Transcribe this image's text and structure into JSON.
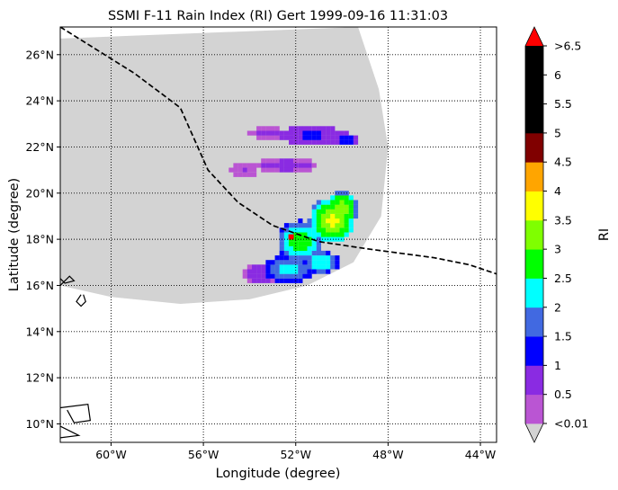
{
  "chart_data": {
    "type": "heatmap",
    "title": "SSMI F-11 Rain Index (RI) Gert 1999-09-16 11:31:03",
    "xlabel": "Longitude (degree)",
    "ylabel": "Latitude (degree)",
    "xlim": [
      -62.2,
      -43.3
    ],
    "ylim": [
      9.2,
      27.2
    ],
    "x_ticks": [
      {
        "value": -60,
        "label": "60°W"
      },
      {
        "value": -56,
        "label": "56°W"
      },
      {
        "value": -52,
        "label": "52°W"
      },
      {
        "value": -48,
        "label": "48°W"
      },
      {
        "value": -44,
        "label": "44°W"
      }
    ],
    "y_ticks": [
      {
        "value": 10,
        "label": "10°N"
      },
      {
        "value": 12,
        "label": "12°N"
      },
      {
        "value": 14,
        "label": "14°N"
      },
      {
        "value": 16,
        "label": "16°N"
      },
      {
        "value": 18,
        "label": "18°N"
      },
      {
        "value": 20,
        "label": "20°N"
      },
      {
        "value": 22,
        "label": "22°N"
      },
      {
        "value": 24,
        "label": "24°N"
      },
      {
        "value": 26,
        "label": "26°N"
      }
    ],
    "grid": "dotted",
    "colorbar": {
      "label": "RI",
      "levels": [
        0.01,
        0.5,
        1,
        1.5,
        2,
        2.5,
        3,
        3.5,
        4,
        4.5,
        5,
        5.5,
        6,
        6.5
      ],
      "colors": [
        "#ba55d3",
        "#8a2be2",
        "#0000ff",
        "#4169e1",
        "#00ffff",
        "#00ff00",
        "#7fff00",
        "#ffff00",
        "#ffa500",
        "#800000",
        "#000000",
        "#000000",
        "#000000"
      ],
      "under_color": "#d3d3d3",
      "over_color": "#ff0000",
      "tick_labels": [
        "<0.01",
        "0.5",
        "1",
        "1.5",
        "2",
        "2.5",
        "3",
        "3.5",
        "4",
        "4.5",
        "5",
        "5.5",
        "6",
        ">6.5"
      ]
    },
    "swath": {
      "no_rain_color": "#d3d3d3",
      "edge": [
        [
          -62.2,
          26.7
        ],
        [
          -49.3,
          27.2
        ],
        [
          -48.4,
          24.5
        ],
        [
          -48.0,
          22.0
        ],
        [
          -48.3,
          19.0
        ],
        [
          -49.5,
          17.0
        ],
        [
          -51.5,
          16.0
        ],
        [
          -54.0,
          15.4
        ],
        [
          -57.0,
          15.2
        ],
        [
          -60.0,
          15.5
        ],
        [
          -62.2,
          16.0
        ]
      ]
    },
    "rain_features": [
      {
        "center": [
          -50.4,
          18.8
        ],
        "radius": 1.5,
        "peak_ri": 3.6,
        "spread_lon": 1.0,
        "spread_lat": 1.0
      },
      {
        "center": [
          -50.0,
          19.3
        ],
        "radius": 1.0,
        "peak_ri": 3.4,
        "spread_lon": 0.7,
        "spread_lat": 0.8
      },
      {
        "center": [
          -51.8,
          17.9
        ],
        "radius": 1.3,
        "peak_ri": 2.9,
        "spread_lon": 1.0,
        "spread_lat": 0.9
      },
      {
        "center": [
          -52.3,
          16.7
        ],
        "radius": 1.3,
        "peak_ri": 2.2,
        "spread_lon": 1.1,
        "spread_lat": 0.6
      },
      {
        "center": [
          -50.9,
          17.0
        ],
        "radius": 0.9,
        "peak_ri": 2.4,
        "spread_lon": 0.8,
        "spread_lat": 0.5
      },
      {
        "center": [
          -53.5,
          16.5
        ],
        "radius": 0.9,
        "peak_ri": 0.7,
        "spread_lon": 0.8,
        "spread_lat": 0.5
      },
      {
        "center": [
          -51.3,
          22.5
        ],
        "radius": 1.2,
        "peak_ri": 1.1,
        "spread_lon": 1.4,
        "spread_lat": 0.4
      },
      {
        "center": [
          -49.8,
          22.3
        ],
        "radius": 0.8,
        "peak_ri": 1.3,
        "spread_lon": 0.6,
        "spread_lat": 0.3
      },
      {
        "center": [
          -53.2,
          22.6
        ],
        "radius": 0.8,
        "peak_ri": 0.6,
        "spread_lon": 0.8,
        "spread_lat": 0.3
      },
      {
        "center": [
          -52.4,
          21.2
        ],
        "radius": 1.0,
        "peak_ri": 0.7,
        "spread_lon": 1.4,
        "spread_lat": 0.3
      },
      {
        "center": [
          -54.2,
          21.0
        ],
        "radius": 0.6,
        "peak_ri": 0.5,
        "spread_lon": 0.6,
        "spread_lat": 0.3
      }
    ],
    "hot_spot": {
      "lon": -52.2,
      "lat": 18.1,
      "ri": 7.0
    },
    "track": {
      "style": "dashed",
      "color": "#000000",
      "points": [
        [
          -62.2,
          27.2
        ],
        [
          -59.0,
          25.2
        ],
        [
          -57.0,
          23.7
        ],
        [
          -55.8,
          21.0
        ],
        [
          -54.5,
          19.6
        ],
        [
          -53.0,
          18.6
        ],
        [
          -51.0,
          17.9
        ],
        [
          -49.0,
          17.6
        ],
        [
          -47.5,
          17.4
        ],
        [
          -46.0,
          17.2
        ],
        [
          -44.5,
          16.9
        ],
        [
          -43.3,
          16.5
        ]
      ]
    },
    "coastlines": [
      [
        [
          -62.2,
          16.0
        ],
        [
          -61.8,
          16.4
        ],
        [
          -61.6,
          16.2
        ],
        [
          -62.0,
          16.1
        ],
        [
          -62.2,
          16.3
        ]
      ],
      [
        [
          -61.2,
          15.6
        ],
        [
          -61.1,
          15.3
        ],
        [
          -61.3,
          15.1
        ],
        [
          -61.5,
          15.3
        ],
        [
          -61.3,
          15.6
        ]
      ],
      [
        [
          -62.2,
          10.7
        ],
        [
          -61.0,
          10.85
        ],
        [
          -60.9,
          10.15
        ],
        [
          -61.6,
          10.05
        ],
        [
          -61.9,
          10.6
        ]
      ],
      [
        [
          -62.2,
          9.9
        ],
        [
          -61.4,
          9.5
        ],
        [
          -62.2,
          9.4
        ]
      ]
    ]
  }
}
